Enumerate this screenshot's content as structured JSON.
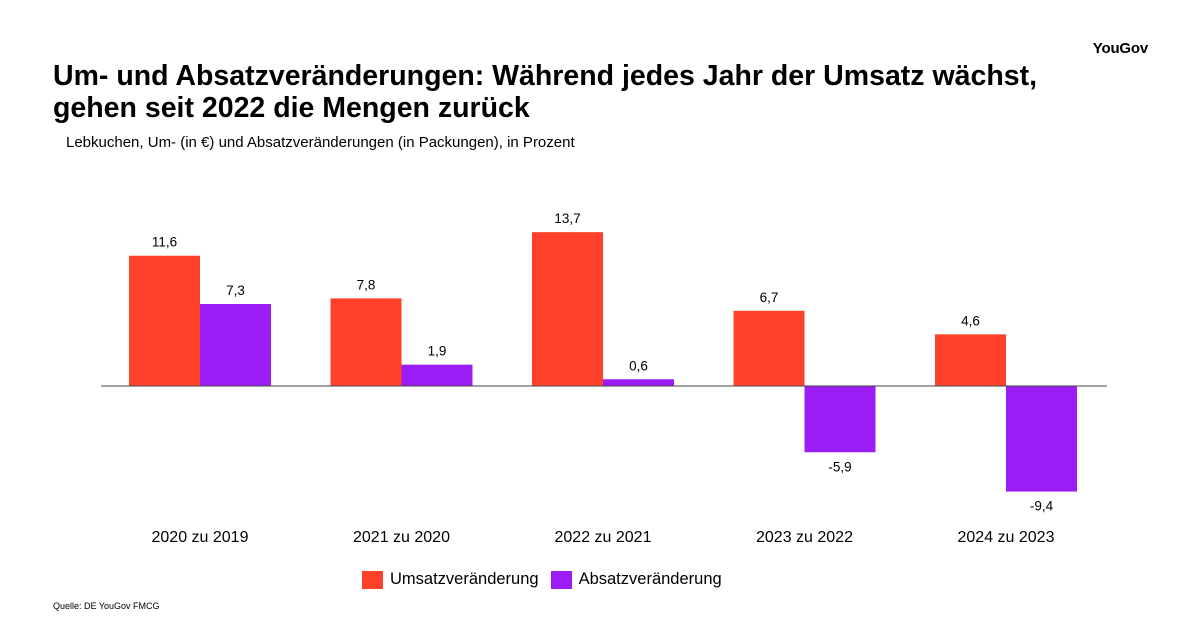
{
  "brand": {
    "logo_text": "YouGov"
  },
  "header": {
    "title": "Um- und Absatzveränderungen: Während jedes Jahr der Umsatz wächst, gehen seit 2022 die Mengen zurück",
    "subtitle": "Lebkuchen, Um- (in €) und Absatzveränderungen (in Packungen), in Prozent"
  },
  "source": "Quelle: DE YouGov FMCG",
  "chart_data": {
    "type": "bar",
    "categories": [
      "2020 zu 2019",
      "2021 zu 2020",
      "2022 zu 2021",
      "2023 zu 2022",
      "2024 zu 2023"
    ],
    "series": [
      {
        "name": "Umsatzveränderung",
        "color": "#ff412c",
        "values": [
          11.6,
          7.8,
          13.7,
          6.7,
          4.6
        ],
        "labels": [
          "11,6",
          "7,8",
          "13,7",
          "6,7",
          "4,6"
        ]
      },
      {
        "name": "Absatzveränderung",
        "color": "#9b1cf4",
        "values": [
          7.3,
          1.9,
          0.6,
          -5.9,
          -9.4
        ],
        "labels": [
          "7,3",
          "1,9",
          "0,6",
          "-5,9",
          "-9,4"
        ]
      }
    ],
    "grid": false,
    "legend_position": "bottom"
  }
}
